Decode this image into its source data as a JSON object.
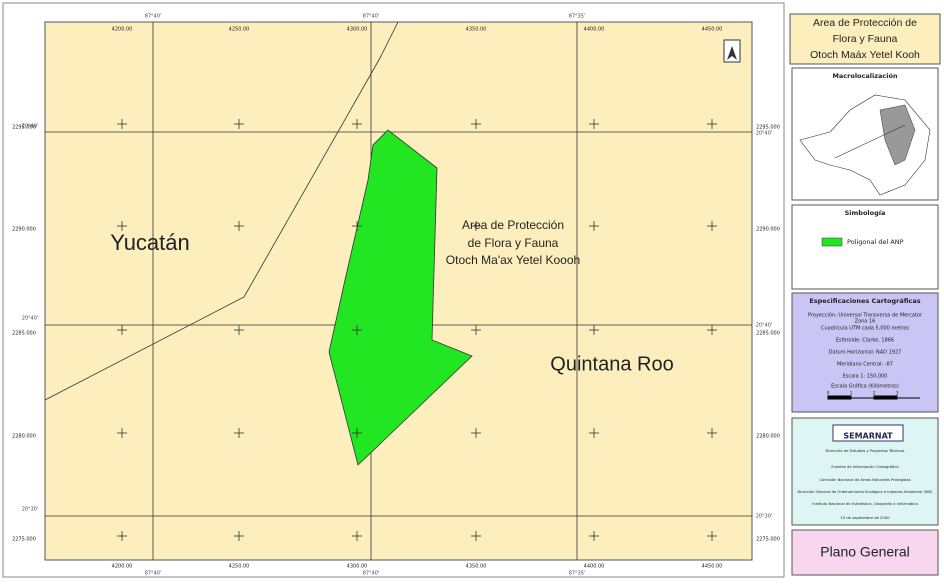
{
  "map": {
    "degree_labels_top": [
      "87°40'",
      "87°40'",
      "87°35'"
    ],
    "degree_labels_bottom": [
      "87°40'",
      "87°40'",
      "87°35'"
    ],
    "easting_labels": [
      "4200.00",
      "4250.00",
      "4300.00",
      "4350.00",
      "4400.00",
      "4450.00"
    ],
    "northing_labels": [
      "2295.000",
      "2290.000",
      "2285.000",
      "2280.000",
      "2275.000"
    ],
    "degree_labels_side": [
      "20°40'",
      "20°40'",
      "20°30'"
    ],
    "region_labels": [
      "Yucatán",
      "Quintana Roo"
    ],
    "anp_label": [
      "Area de Protección",
      "de Flora y Fauna",
      "Otoch Ma'ax Yetel Koooh"
    ]
  },
  "panel": {
    "title": [
      "Area de Protección de",
      "Flora y Fauna",
      "Otoch Maáx Yetel Kooh"
    ],
    "macro_title": "Macrolocalización",
    "legend_title": "Simbología",
    "legend_item": "Poligonal del ANP",
    "specs_title": "Especificaciones Cartográficas",
    "specs_lines": [
      "Proyección: Universal Transversa de Mercator",
      "Zona 16",
      "Cuadrícula UTM cada 5,000 metros",
      "Esferoide: Clarke, 1866",
      "Datum Horizontal: NAD 1927",
      "Meridiano Central: -87",
      "Escala 1: 150,000",
      "Escala Gráfica (Kilómetros)"
    ],
    "scale_ticks": [
      "0",
      "1",
      "2",
      "3"
    ],
    "logo": "SEMARNAT",
    "credits": [
      "Dirección de Estudios y Proyectos Técnicos",
      "Fuentes de Información Cartográfica",
      "Comisión Nacional de Áreas Naturales Protegidas",
      "Dirección General de Ordenamiento Ecológico e Impacto Ambiental (INE)",
      "Instituto Nacional de Estadística, Geografía e Informática",
      "15 de septiembre de 2000"
    ],
    "sheet": "Plano General"
  }
}
